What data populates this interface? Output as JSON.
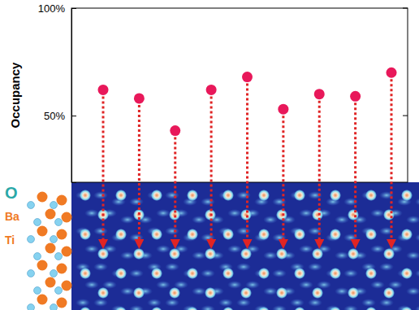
{
  "chart_data": {
    "type": "scatter",
    "y_label": "Occupancy",
    "categories": [
      null,
      null,
      null,
      null,
      null,
      null,
      null,
      null,
      null
    ],
    "values": [
      62,
      58,
      43,
      62,
      68,
      53,
      60,
      59,
      70
    ],
    "color": "#e8185a",
    "ylim": [
      19,
      100
    ],
    "yticks": [
      {
        "value": 50,
        "label": "50%"
      },
      {
        "value": 100,
        "label": "100%"
      }
    ],
    "tick_labels": "y",
    "marker": "circle",
    "annotations": [
      "O",
      "Ba",
      "Ti"
    ]
  }
}
